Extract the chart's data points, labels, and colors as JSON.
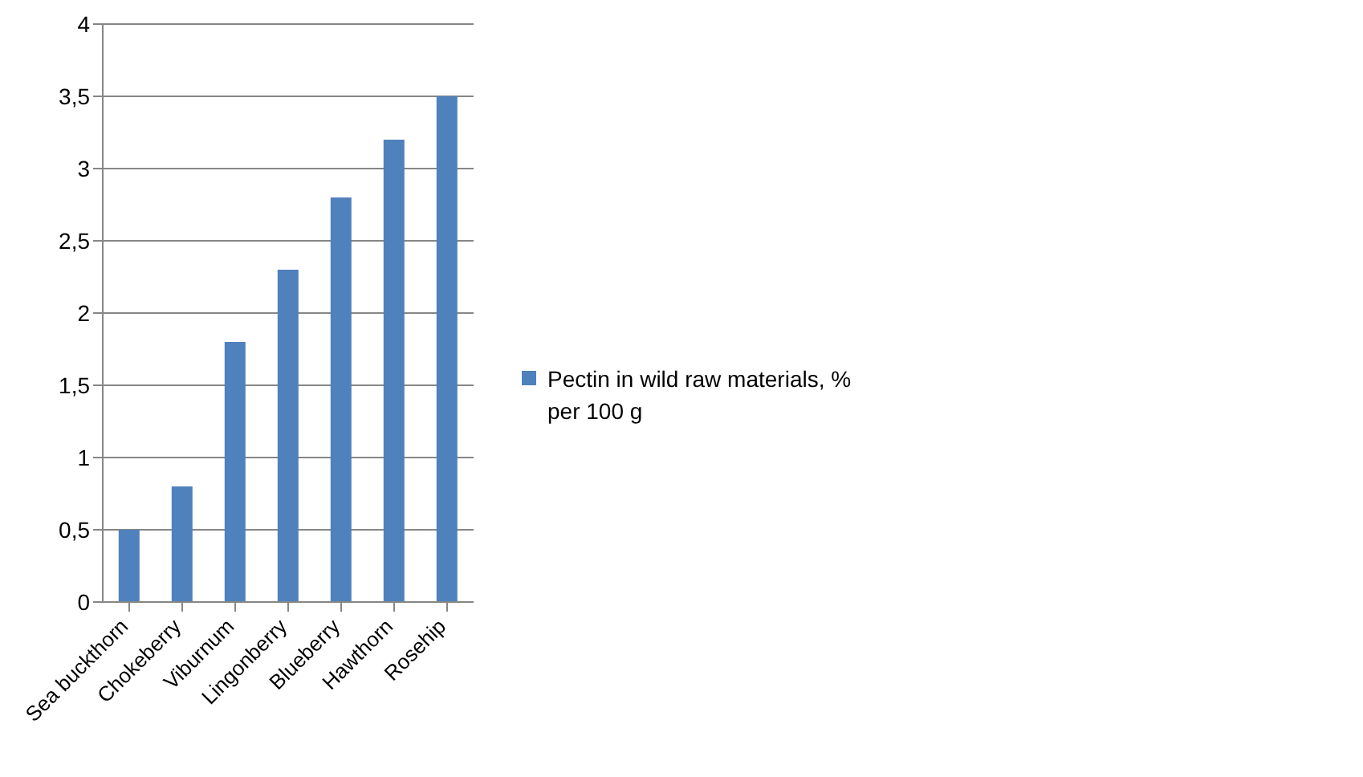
{
  "chart_data": {
    "type": "bar",
    "categories": [
      "Sea buckthorn",
      "Chokeberry",
      "Viburnum",
      "Lingonberry",
      "Blueberry",
      "Hawthorn",
      "Rosehip"
    ],
    "series": [
      {
        "name": "Pectin in wild raw materials, % per 100 g",
        "color": "#4f81bd",
        "values": [
          0.5,
          0.8,
          1.8,
          2.3,
          2.8,
          3.2,
          3.5
        ]
      }
    ],
    "ylim": [
      0,
      4
    ],
    "yticks": [
      0,
      {
        "value": 0.5,
        "label": "0,5"
      },
      1,
      {
        "value": 1.5,
        "label": "1,5"
      },
      2,
      {
        "value": 2.5,
        "label": "2,5"
      },
      3,
      {
        "value": 3.5,
        "label": "3,5"
      },
      4
    ],
    "grid": "y",
    "legend": "right"
  }
}
